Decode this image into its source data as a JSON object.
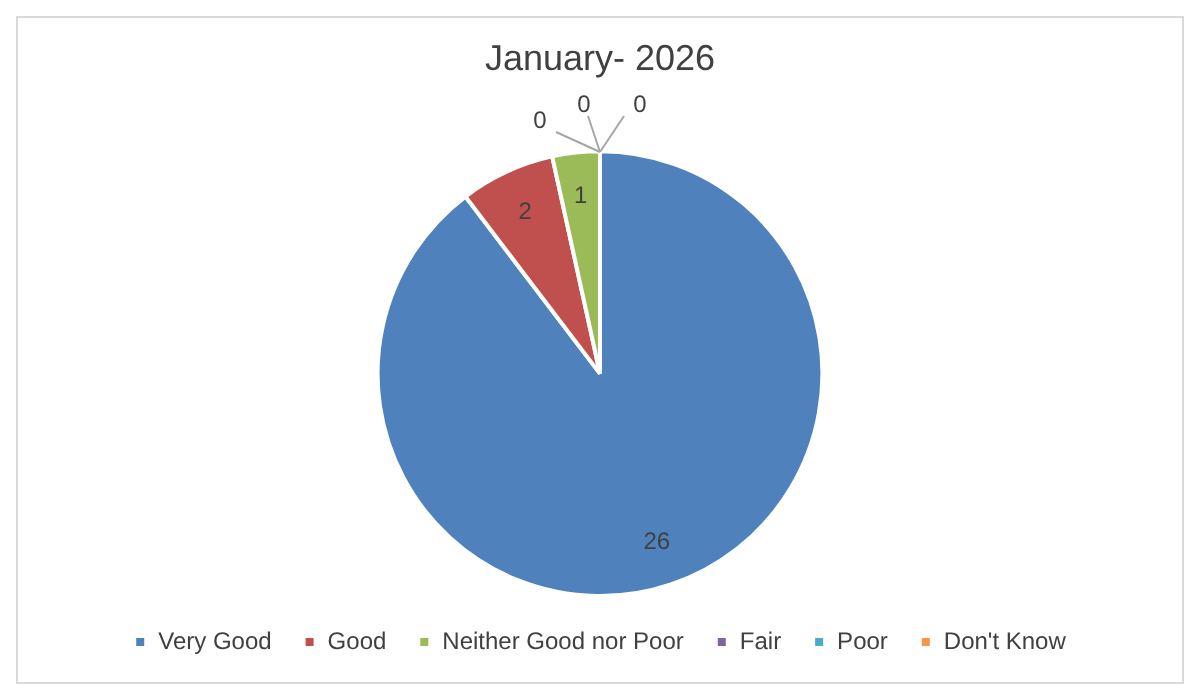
{
  "chart_data": {
    "type": "pie",
    "title": "January- 2026",
    "categories": [
      "Very Good",
      "Good",
      "Neither Good nor Poor",
      "Fair",
      "Poor",
      "Don't Know"
    ],
    "values": [
      26,
      2,
      1,
      0,
      0,
      0
    ],
    "value_labels": [
      "26",
      "2",
      "1",
      "0",
      "0",
      "0"
    ],
    "colors": [
      "#4f81bd",
      "#c0504d",
      "#9bbb59",
      "#8064a2",
      "#4bacc6",
      "#f79646"
    ],
    "legend": "bottom"
  }
}
